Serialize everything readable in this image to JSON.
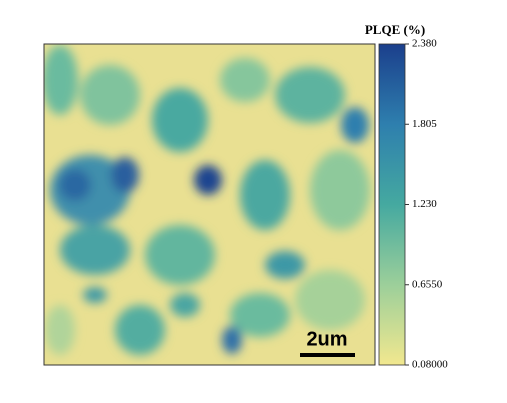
{
  "chart_data": {
    "type": "heatmap",
    "colorbar_title": "PLQE (%)",
    "clim": [
      0.08,
      2.38
    ],
    "cticks": [
      {
        "value": 2.38,
        "label": "2.380"
      },
      {
        "value": 1.805,
        "label": "1.805"
      },
      {
        "value": 1.23,
        "label": "1.230"
      },
      {
        "value": 0.655,
        "label": "0.6550"
      },
      {
        "value": 0.08,
        "label": "0.08000"
      }
    ],
    "colors": [
      "#f2e88f",
      "#9ccf9a",
      "#45a9a0",
      "#2e7fae",
      "#1b3f8c"
    ],
    "scale_bar_label": "2um"
  }
}
